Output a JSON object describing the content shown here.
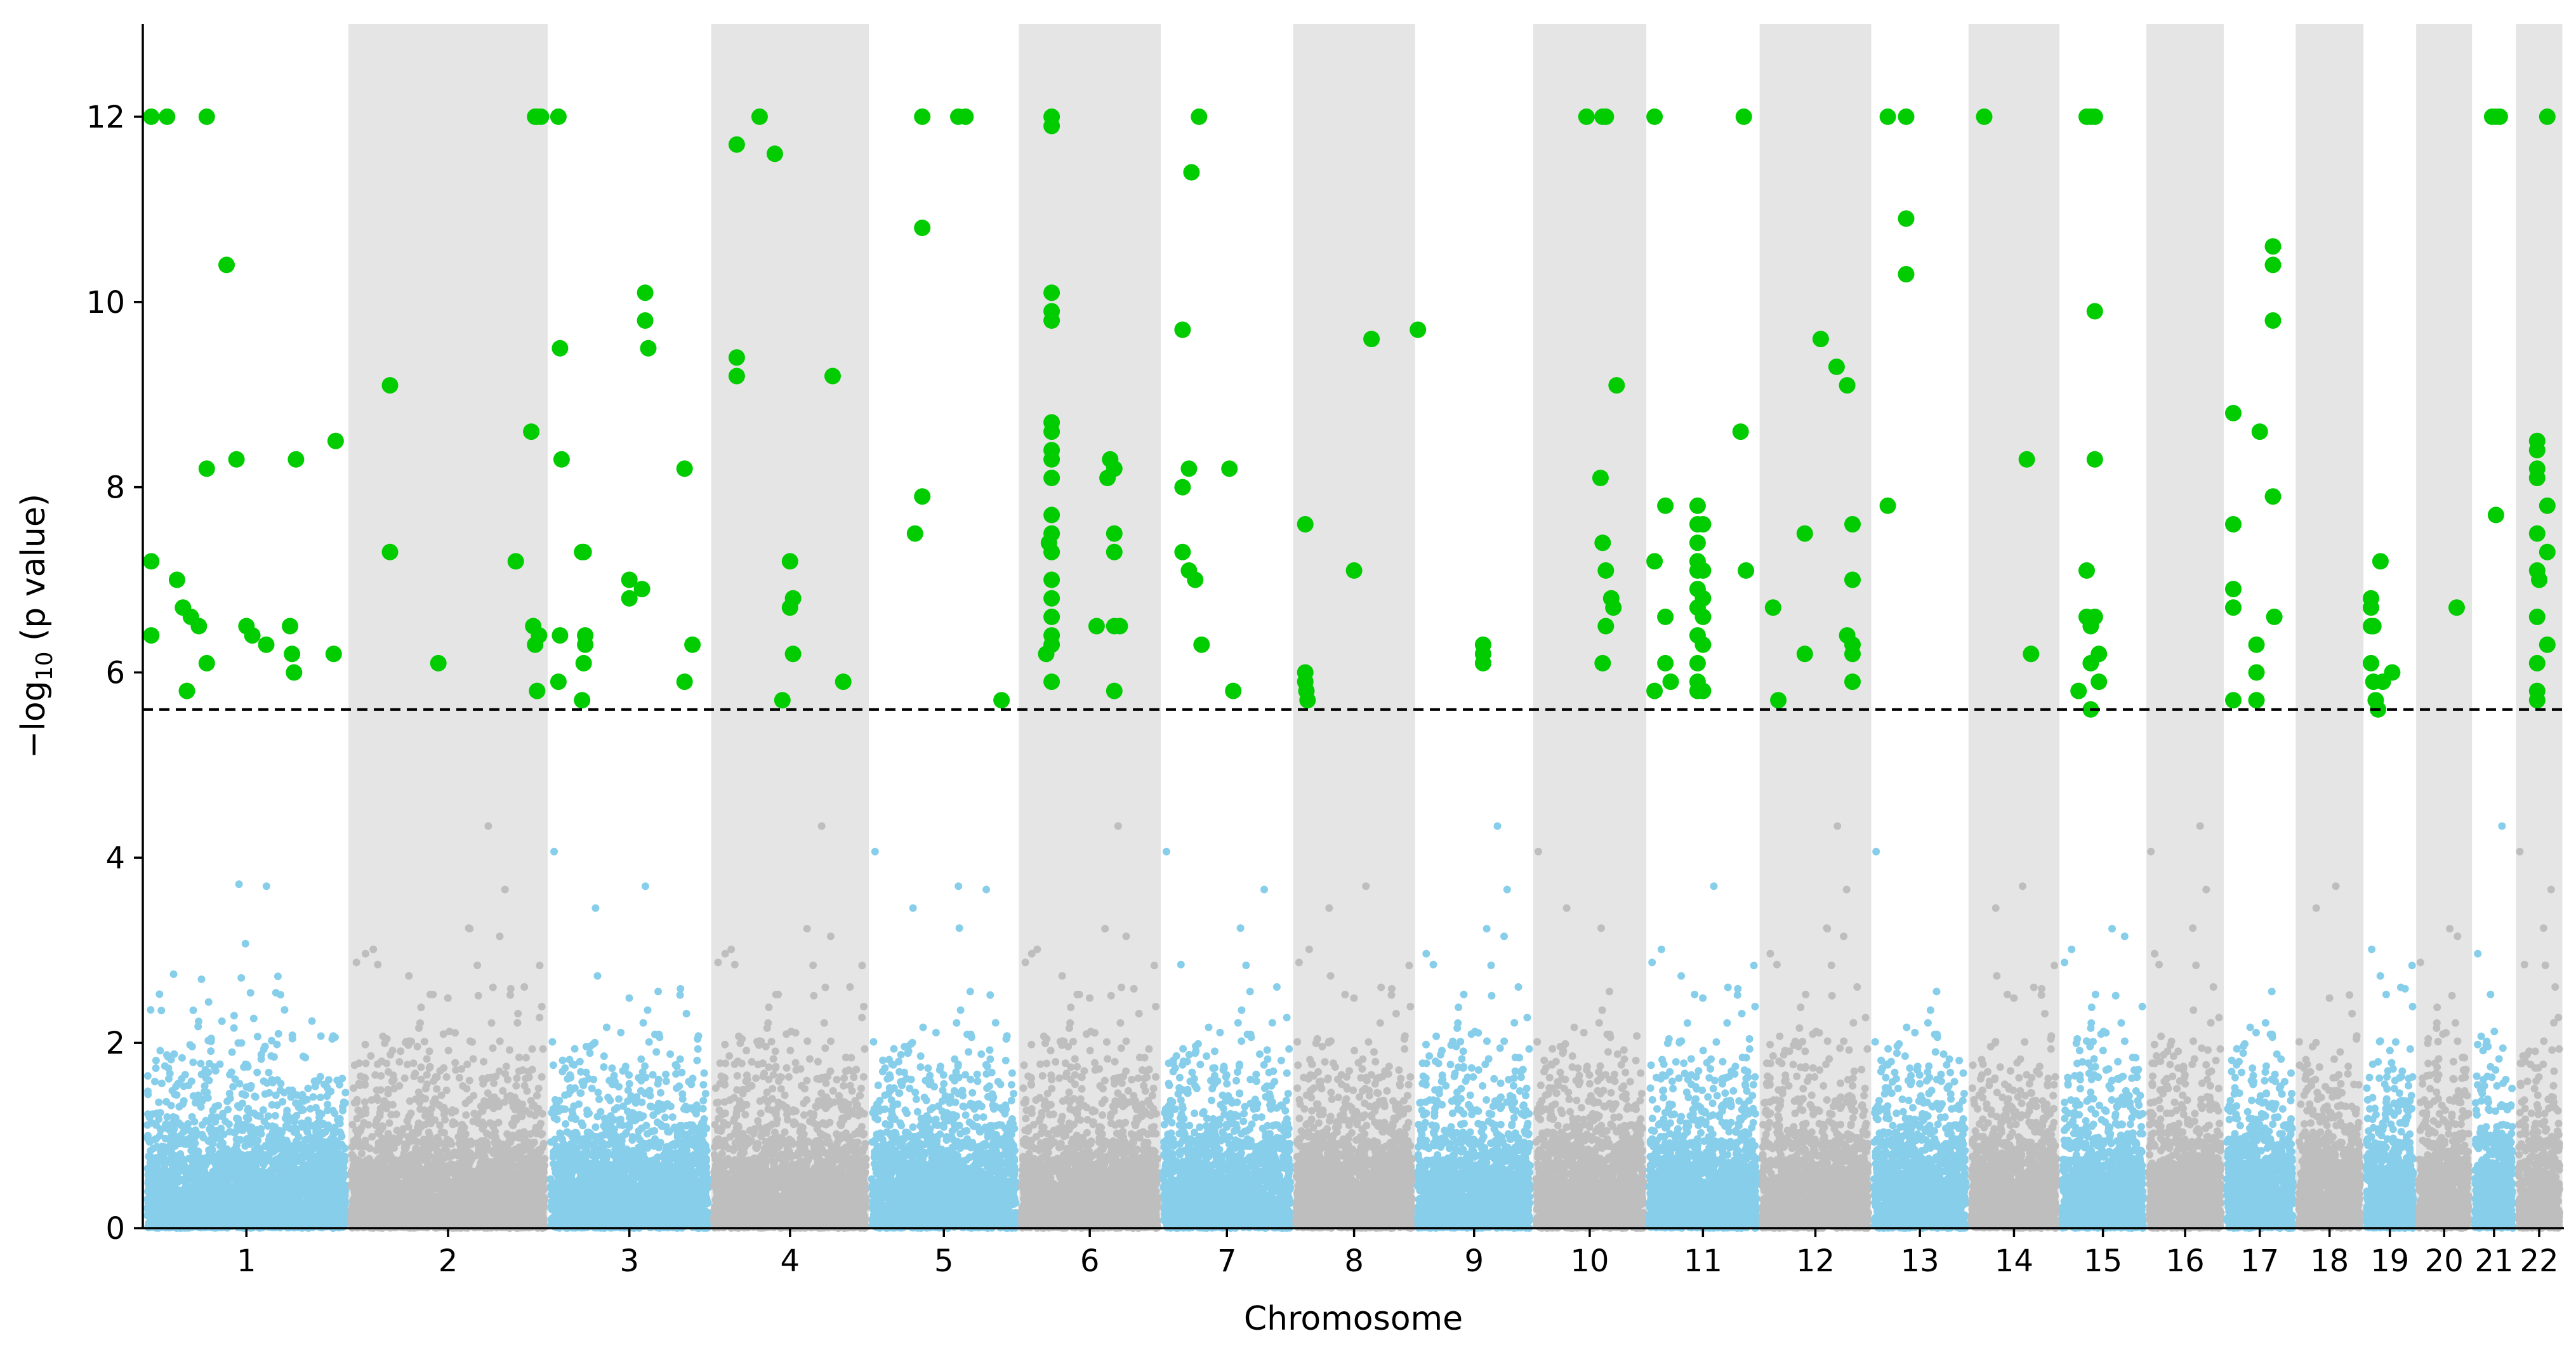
{
  "chart_data": {
    "type": "scatter",
    "subtype": "manhattan",
    "title": "",
    "xlabel": "Chromosome",
    "ylabel_main": "−log",
    "ylabel_sub": "10",
    "ylabel_rest": " (p value)",
    "ylim": [
      0,
      13
    ],
    "yticks": [
      0,
      2,
      4,
      6,
      8,
      10,
      12
    ],
    "significance_threshold": 5.6,
    "grid": false,
    "legend": "none",
    "colors": {
      "odd_chrom": "#87ceeb",
      "even_chrom": "#bebebe",
      "significant": "#00cc00",
      "band": "#e5e5e5",
      "threshold_line": "#000000"
    },
    "chromosomes": [
      {
        "label": "1",
        "length": 249
      },
      {
        "label": "2",
        "length": 243
      },
      {
        "label": "3",
        "length": 198
      },
      {
        "label": "4",
        "length": 191
      },
      {
        "label": "5",
        "length": 181
      },
      {
        "label": "6",
        "length": 171
      },
      {
        "label": "7",
        "length": 159
      },
      {
        "label": "8",
        "length": 146
      },
      {
        "label": "9",
        "length": 141
      },
      {
        "label": "10",
        "length": 135
      },
      {
        "label": "11",
        "length": 135
      },
      {
        "label": "12",
        "length": 133
      },
      {
        "label": "13",
        "length": 115
      },
      {
        "label": "14",
        "length": 107
      },
      {
        "label": "15",
        "length": 102
      },
      {
        "label": "16",
        "length": 90
      },
      {
        "label": "17",
        "length": 83
      },
      {
        "label": "18",
        "length": 78
      },
      {
        "label": "19",
        "length": 59
      },
      {
        "label": "20",
        "length": 63
      },
      {
        "label": "21",
        "length": 48
      },
      {
        "label": "22",
        "length": 51
      }
    ],
    "significant_points": [
      [
        "1",
        0.02,
        12
      ],
      [
        "1",
        0.1,
        12
      ],
      [
        "1",
        0.3,
        12
      ],
      [
        "1",
        0.4,
        10.4
      ],
      [
        "1",
        0.18,
        6.7
      ],
      [
        "1",
        0.22,
        6.6
      ],
      [
        "1",
        0.26,
        6.5
      ],
      [
        "1",
        0.02,
        7.2
      ],
      [
        "1",
        0.02,
        6.4
      ],
      [
        "1",
        0.15,
        7.0
      ],
      [
        "1",
        0.2,
        5.8
      ],
      [
        "1",
        0.3,
        6.1
      ],
      [
        "1",
        0.45,
        8.3
      ],
      [
        "1",
        0.3,
        8.2
      ],
      [
        "1",
        0.5,
        6.5
      ],
      [
        "1",
        0.53,
        6.4
      ],
      [
        "1",
        0.6,
        6.3
      ],
      [
        "1",
        0.75,
        8.3
      ],
      [
        "1",
        0.72,
        6.5
      ],
      [
        "1",
        0.73,
        6.2
      ],
      [
        "1",
        0.74,
        6.0
      ],
      [
        "1",
        0.95,
        8.5
      ],
      [
        "1",
        0.94,
        6.2
      ],
      [
        "2",
        0.2,
        9.1
      ],
      [
        "2",
        0.2,
        7.3
      ],
      [
        "2",
        0.45,
        6.1
      ],
      [
        "2",
        0.85,
        7.2
      ],
      [
        "2",
        0.95,
        12
      ],
      [
        "2",
        0.96,
        12
      ],
      [
        "2",
        0.98,
        12
      ],
      [
        "2",
        0.93,
        8.6
      ],
      [
        "2",
        0.94,
        6.5
      ],
      [
        "2",
        0.95,
        6.3
      ],
      [
        "2",
        0.97,
        6.4
      ],
      [
        "2",
        0.96,
        5.8
      ],
      [
        "3",
        0.05,
        12
      ],
      [
        "3",
        0.06,
        9.5
      ],
      [
        "3",
        0.07,
        8.3
      ],
      [
        "3",
        0.06,
        6.4
      ],
      [
        "3",
        0.05,
        5.9
      ],
      [
        "3",
        0.2,
        7.3
      ],
      [
        "3",
        0.21,
        7.3
      ],
      [
        "3",
        0.22,
        6.4
      ],
      [
        "3",
        0.22,
        6.3
      ],
      [
        "3",
        0.21,
        6.1
      ],
      [
        "3",
        0.2,
        5.7
      ],
      [
        "3",
        0.5,
        7.0
      ],
      [
        "3",
        0.5,
        6.8
      ],
      [
        "3",
        0.58,
        6.9
      ],
      [
        "3",
        0.6,
        10.1
      ],
      [
        "3",
        0.6,
        9.8
      ],
      [
        "3",
        0.62,
        9.5
      ],
      [
        "3",
        0.85,
        8.2
      ],
      [
        "3",
        0.85,
        5.9
      ],
      [
        "3",
        0.9,
        6.3
      ],
      [
        "4",
        0.15,
        11.7
      ],
      [
        "4",
        0.15,
        9.4
      ],
      [
        "4",
        0.15,
        9.2
      ],
      [
        "4",
        0.3,
        12
      ],
      [
        "4",
        0.4,
        11.6
      ],
      [
        "4",
        0.45,
        5.7
      ],
      [
        "4",
        0.5,
        7.2
      ],
      [
        "4",
        0.52,
        6.8
      ],
      [
        "4",
        0.5,
        6.7
      ],
      [
        "4",
        0.52,
        6.2
      ],
      [
        "4",
        0.78,
        9.2
      ],
      [
        "4",
        0.85,
        5.9
      ],
      [
        "5",
        0.35,
        12
      ],
      [
        "5",
        0.35,
        10.8
      ],
      [
        "5",
        0.35,
        7.9
      ],
      [
        "5",
        0.3,
        7.5
      ],
      [
        "5",
        0.6,
        12
      ],
      [
        "5",
        0.65,
        12
      ],
      [
        "5",
        0.9,
        5.7
      ],
      [
        "6",
        0.22,
        12
      ],
      [
        "6",
        0.22,
        11.9
      ],
      [
        "6",
        0.22,
        10.1
      ],
      [
        "6",
        0.22,
        9.9
      ],
      [
        "6",
        0.22,
        9.8
      ],
      [
        "6",
        0.22,
        8.7
      ],
      [
        "6",
        0.22,
        8.6
      ],
      [
        "6",
        0.22,
        8.4
      ],
      [
        "6",
        0.22,
        8.3
      ],
      [
        "6",
        0.22,
        8.1
      ],
      [
        "6",
        0.22,
        7.7
      ],
      [
        "6",
        0.22,
        7.5
      ],
      [
        "6",
        0.22,
        7.3
      ],
      [
        "6",
        0.22,
        7.0
      ],
      [
        "6",
        0.22,
        6.8
      ],
      [
        "6",
        0.22,
        6.6
      ],
      [
        "6",
        0.22,
        6.4
      ],
      [
        "6",
        0.22,
        6.3
      ],
      [
        "6",
        0.22,
        5.9
      ],
      [
        "6",
        0.2,
        7.4
      ],
      [
        "6",
        0.18,
        6.2
      ],
      [
        "6",
        0.55,
        6.5
      ],
      [
        "6",
        0.65,
        8.3
      ],
      [
        "6",
        0.63,
        8.1
      ],
      [
        "6",
        0.68,
        8.2
      ],
      [
        "6",
        0.68,
        7.5
      ],
      [
        "6",
        0.68,
        7.3
      ],
      [
        "6",
        0.68,
        5.8
      ],
      [
        "6",
        0.68,
        6.5
      ],
      [
        "6",
        0.72,
        6.5
      ],
      [
        "7",
        0.15,
        9.7
      ],
      [
        "7",
        0.15,
        8.0
      ],
      [
        "7",
        0.2,
        8.2
      ],
      [
        "7",
        0.22,
        11.4
      ],
      [
        "7",
        0.28,
        12
      ],
      [
        "7",
        0.15,
        7.3
      ],
      [
        "7",
        0.2,
        7.1
      ],
      [
        "7",
        0.25,
        7.0
      ],
      [
        "7",
        0.3,
        6.3
      ],
      [
        "7",
        0.52,
        8.2
      ],
      [
        "7",
        0.55,
        5.8
      ],
      [
        "8",
        0.08,
        7.6
      ],
      [
        "8",
        0.08,
        6.0
      ],
      [
        "8",
        0.08,
        5.9
      ],
      [
        "8",
        0.09,
        5.8
      ],
      [
        "8",
        0.1,
        5.7
      ],
      [
        "8",
        0.5,
        7.1
      ],
      [
        "8",
        0.65,
        9.6
      ],
      [
        "9",
        0.0,
        9.7
      ],
      [
        "9",
        0.58,
        6.3
      ],
      [
        "9",
        0.58,
        6.2
      ],
      [
        "9",
        0.58,
        6.1
      ],
      [
        "10",
        0.47,
        12
      ],
      [
        "10",
        0.62,
        12
      ],
      [
        "10",
        0.65,
        12
      ],
      [
        "10",
        0.6,
        8.1
      ],
      [
        "10",
        0.62,
        7.4
      ],
      [
        "10",
        0.65,
        7.1
      ],
      [
        "10",
        0.75,
        9.1
      ],
      [
        "10",
        0.7,
        6.8
      ],
      [
        "10",
        0.72,
        6.7
      ],
      [
        "10",
        0.65,
        6.5
      ],
      [
        "10",
        0.62,
        6.1
      ],
      [
        "11",
        0.05,
        12
      ],
      [
        "11",
        0.05,
        7.2
      ],
      [
        "11",
        0.05,
        5.8
      ],
      [
        "11",
        0.15,
        7.8
      ],
      [
        "11",
        0.15,
        6.6
      ],
      [
        "11",
        0.15,
        6.1
      ],
      [
        "11",
        0.2,
        5.9
      ],
      [
        "11",
        0.45,
        7.8
      ],
      [
        "11",
        0.45,
        7.6
      ],
      [
        "11",
        0.45,
        7.4
      ],
      [
        "11",
        0.45,
        7.2
      ],
      [
        "11",
        0.45,
        7.1
      ],
      [
        "11",
        0.45,
        6.9
      ],
      [
        "11",
        0.45,
        6.7
      ],
      [
        "11",
        0.45,
        6.4
      ],
      [
        "11",
        0.45,
        6.1
      ],
      [
        "11",
        0.45,
        5.9
      ],
      [
        "11",
        0.45,
        5.8
      ],
      [
        "11",
        0.5,
        7.6
      ],
      [
        "11",
        0.5,
        7.1
      ],
      [
        "11",
        0.5,
        6.8
      ],
      [
        "11",
        0.5,
        6.6
      ],
      [
        "11",
        0.5,
        6.3
      ],
      [
        "11",
        0.5,
        5.8
      ],
      [
        "11",
        0.85,
        8.6
      ],
      [
        "11",
        0.88,
        12
      ],
      [
        "11",
        0.9,
        7.1
      ],
      [
        "12",
        0.1,
        6.7
      ],
      [
        "12",
        0.15,
        5.7
      ],
      [
        "12",
        0.4,
        7.5
      ],
      [
        "12",
        0.4,
        6.2
      ],
      [
        "12",
        0.55,
        9.6
      ],
      [
        "12",
        0.7,
        9.3
      ],
      [
        "12",
        0.8,
        9.1
      ],
      [
        "12",
        0.8,
        6.4
      ],
      [
        "12",
        0.85,
        7.6
      ],
      [
        "12",
        0.85,
        7.0
      ],
      [
        "12",
        0.85,
        6.3
      ],
      [
        "12",
        0.85,
        6.2
      ],
      [
        "12",
        0.85,
        5.9
      ],
      [
        "13",
        0.15,
        12
      ],
      [
        "13",
        0.15,
        7.8
      ],
      [
        "13",
        0.35,
        12
      ],
      [
        "13",
        0.35,
        10.9
      ],
      [
        "13",
        0.35,
        10.3
      ],
      [
        "14",
        0.15,
        12
      ],
      [
        "14",
        0.65,
        8.3
      ],
      [
        "14",
        0.7,
        6.2
      ],
      [
        "15",
        0.3,
        12
      ],
      [
        "15",
        0.35,
        12
      ],
      [
        "15",
        0.4,
        12
      ],
      [
        "15",
        0.3,
        7.1
      ],
      [
        "15",
        0.3,
        6.6
      ],
      [
        "15",
        0.35,
        6.5
      ],
      [
        "15",
        0.35,
        6.1
      ],
      [
        "15",
        0.35,
        5.6
      ],
      [
        "15",
        0.4,
        9.9
      ],
      [
        "15",
        0.4,
        8.3
      ],
      [
        "15",
        0.4,
        6.6
      ],
      [
        "15",
        0.45,
        6.2
      ],
      [
        "15",
        0.45,
        5.9
      ],
      [
        "15",
        0.2,
        5.8
      ],
      [
        "17",
        0.1,
        8.8
      ],
      [
        "17",
        0.1,
        7.6
      ],
      [
        "17",
        0.1,
        6.9
      ],
      [
        "17",
        0.1,
        6.7
      ],
      [
        "17",
        0.1,
        5.7
      ],
      [
        "17",
        0.45,
        6.3
      ],
      [
        "17",
        0.45,
        6.0
      ],
      [
        "17",
        0.45,
        5.7
      ],
      [
        "17",
        0.5,
        8.6
      ],
      [
        "17",
        0.7,
        10.6
      ],
      [
        "17",
        0.7,
        10.4
      ],
      [
        "17",
        0.7,
        9.8
      ],
      [
        "17",
        0.7,
        7.9
      ],
      [
        "17",
        0.72,
        6.6
      ],
      [
        "19",
        0.1,
        6.8
      ],
      [
        "19",
        0.1,
        6.7
      ],
      [
        "19",
        0.1,
        6.5
      ],
      [
        "19",
        0.15,
        6.5
      ],
      [
        "19",
        0.1,
        6.1
      ],
      [
        "19",
        0.15,
        5.9
      ],
      [
        "19",
        0.2,
        5.7
      ],
      [
        "19",
        0.25,
        5.6
      ],
      [
        "19",
        0.3,
        7.2
      ],
      [
        "19",
        0.35,
        5.9
      ],
      [
        "19",
        0.55,
        6.0
      ],
      [
        "20",
        0.75,
        6.7
      ],
      [
        "21",
        0.45,
        12
      ],
      [
        "21",
        0.55,
        12
      ],
      [
        "21",
        0.65,
        12
      ],
      [
        "21",
        0.55,
        7.7
      ],
      [
        "22",
        0.45,
        8.5
      ],
      [
        "22",
        0.45,
        8.4
      ],
      [
        "22",
        0.45,
        8.2
      ],
      [
        "22",
        0.45,
        8.1
      ],
      [
        "22",
        0.45,
        7.5
      ],
      [
        "22",
        0.45,
        7.1
      ],
      [
        "22",
        0.5,
        7.0
      ],
      [
        "22",
        0.45,
        6.6
      ],
      [
        "22",
        0.45,
        6.1
      ],
      [
        "22",
        0.45,
        5.8
      ],
      [
        "22",
        0.45,
        5.7
      ],
      [
        "22",
        0.7,
        12
      ],
      [
        "22",
        0.7,
        7.8
      ],
      [
        "22",
        0.7,
        7.3
      ],
      [
        "22",
        0.7,
        6.3
      ]
    ],
    "background_points_per_chromosome_scale": 2.2
  }
}
